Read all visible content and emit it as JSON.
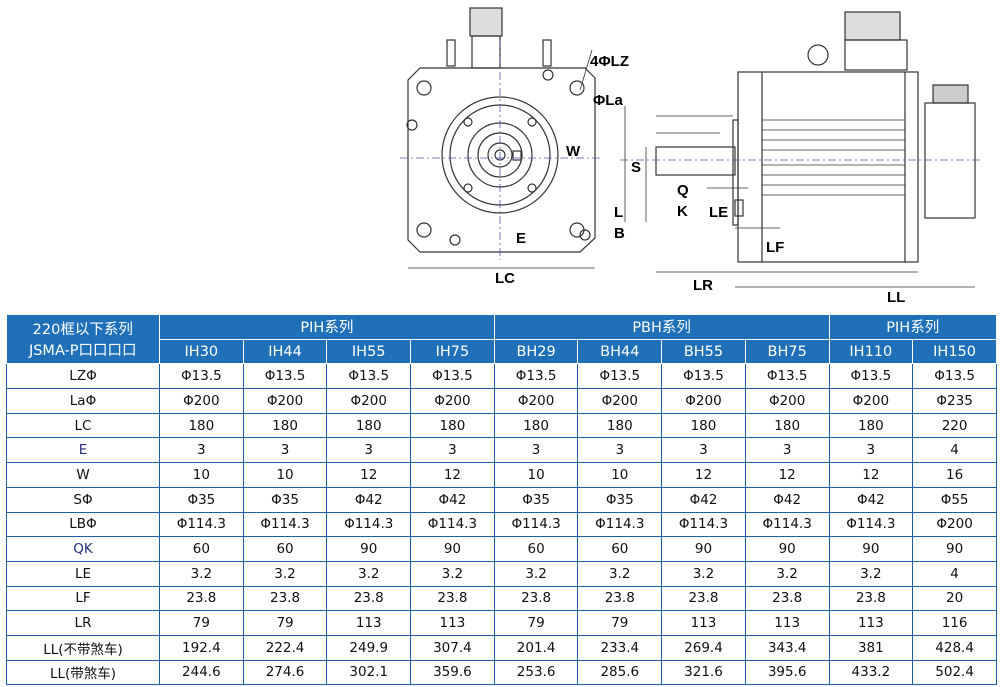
{
  "drawing": {
    "labels": {
      "lz": "4ΦLZ",
      "la": "ΦLa",
      "w": "W",
      "e": "E",
      "lc": "LC",
      "s": "S",
      "q": "Q",
      "k": "K",
      "l": "L",
      "b": "B",
      "le": "LE",
      "lf": "LF",
      "lr": "LR",
      "ll": "LL"
    }
  },
  "table": {
    "corner": [
      "220框以下系列",
      "JSMA-P口口口口"
    ],
    "groups": [
      "PIH系列",
      "PBH系列",
      "PIH系列"
    ],
    "models": [
      "IH30",
      "IH44",
      "IH55",
      "IH75",
      "BH29",
      "BH44",
      "BH55",
      "BH75",
      "IH110",
      "IH150"
    ],
    "rows": [
      {
        "label": "LZΦ",
        "values": [
          "Φ13.5",
          "Φ13.5",
          "Φ13.5",
          "Φ13.5",
          "Φ13.5",
          "Φ13.5",
          "Φ13.5",
          "Φ13.5",
          "Φ13.5",
          "Φ13.5"
        ]
      },
      {
        "label": "LaΦ",
        "values": [
          "Φ200",
          "Φ200",
          "Φ200",
          "Φ200",
          "Φ200",
          "Φ200",
          "Φ200",
          "Φ200",
          "Φ200",
          "Φ235"
        ]
      },
      {
        "label": "LC",
        "values": [
          "180",
          "180",
          "180",
          "180",
          "180",
          "180",
          "180",
          "180",
          "180",
          "220"
        ]
      },
      {
        "label": "E",
        "values": [
          "3",
          "3",
          "3",
          "3",
          "3",
          "3",
          "3",
          "3",
          "3",
          "4"
        ]
      },
      {
        "label": "W",
        "values": [
          "10",
          "10",
          "12",
          "12",
          "10",
          "10",
          "12",
          "12",
          "12",
          "16"
        ]
      },
      {
        "label": "SΦ",
        "values": [
          "Φ35",
          "Φ35",
          "Φ42",
          "Φ42",
          "Φ35",
          "Φ35",
          "Φ42",
          "Φ42",
          "Φ42",
          "Φ55"
        ]
      },
      {
        "label": "LBΦ",
        "values": [
          "Φ114.3",
          "Φ114.3",
          "Φ114.3",
          "Φ114.3",
          "Φ114.3",
          "Φ114.3",
          "Φ114.3",
          "Φ114.3",
          "Φ114.3",
          "Φ200"
        ]
      },
      {
        "label": "QK",
        "values": [
          "60",
          "60",
          "90",
          "90",
          "60",
          "60",
          "90",
          "90",
          "90",
          "90"
        ]
      },
      {
        "label": "LE",
        "values": [
          "3.2",
          "3.2",
          "3.2",
          "3.2",
          "3.2",
          "3.2",
          "3.2",
          "3.2",
          "3.2",
          "4"
        ]
      },
      {
        "label": "LF",
        "values": [
          "23.8",
          "23.8",
          "23.8",
          "23.8",
          "23.8",
          "23.8",
          "23.8",
          "23.8",
          "23.8",
          "20"
        ]
      },
      {
        "label": "LR",
        "values": [
          "79",
          "79",
          "113",
          "113",
          "79",
          "79",
          "113",
          "113",
          "113",
          "116"
        ]
      },
      {
        "label": "LL(不带煞车)",
        "values": [
          "192.4",
          "222.4",
          "249.9",
          "307.4",
          "201.4",
          "233.4",
          "269.4",
          "343.4",
          "381",
          "428.4"
        ]
      },
      {
        "label": "LL(带煞车)",
        "values": [
          "244.6",
          "274.6",
          "302.1",
          "359.6",
          "253.6",
          "285.6",
          "321.6",
          "395.6",
          "433.2",
          "502.4"
        ]
      }
    ],
    "colors": {
      "header_bg": "#1f70b8",
      "border": "#1f5ea8"
    }
  }
}
